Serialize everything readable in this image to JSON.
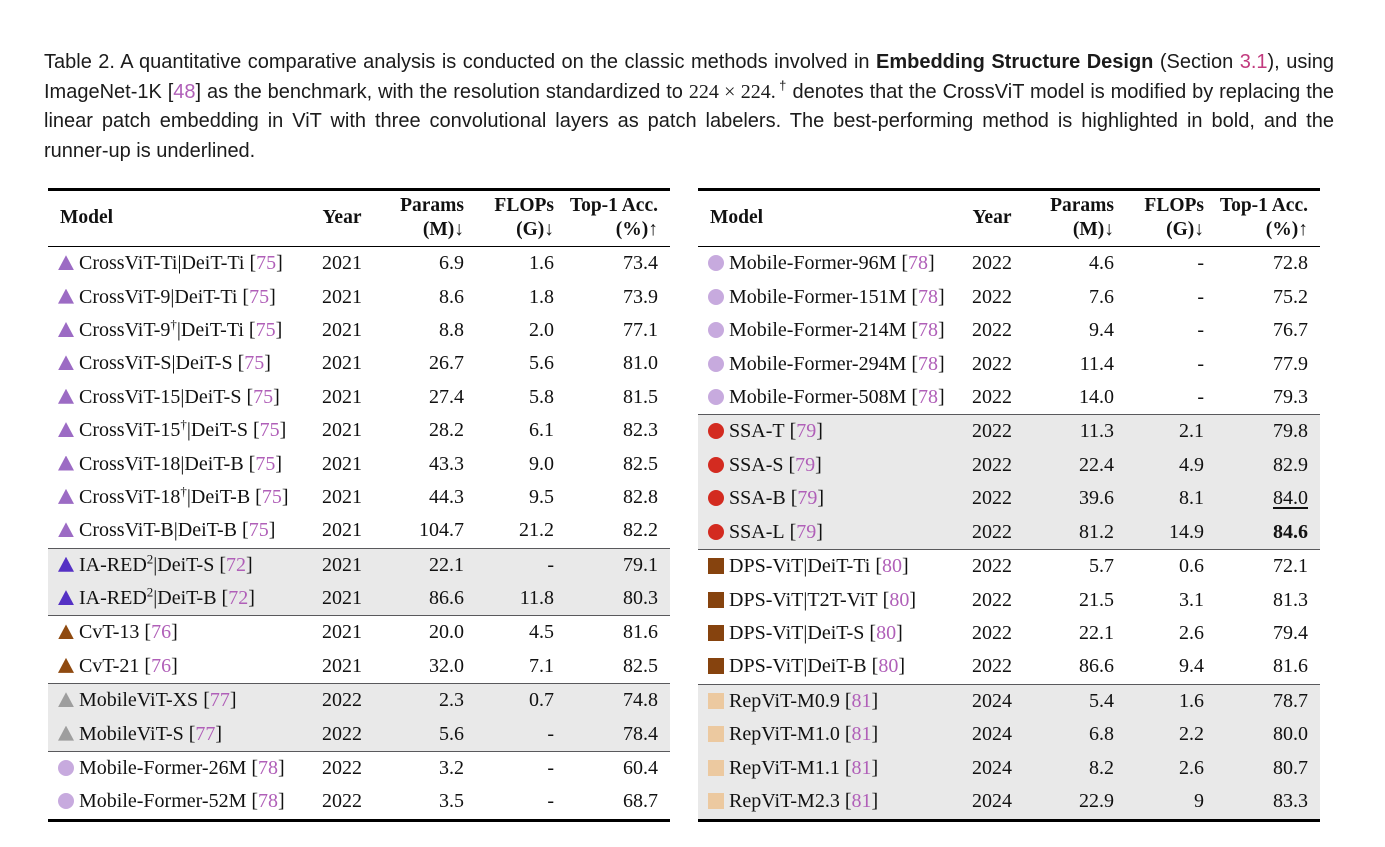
{
  "caption": {
    "t1": "Table 2.  A quantitative comparative analysis is conducted on the classic methods involved in ",
    "b": "Embedding Structure Design",
    "t2": " (Section ",
    "sec": "3.1",
    "t3": "), using ImageNet-1K [",
    "cite": "48",
    "t4": "] as the benchmark, with the resolution standardized to ",
    "math": "224 × 224.",
    "sup": "†",
    "t5": " denotes that the CrossViT model is modified by replacing the linear patch embedding in ViT with three convolutional layers as patch labelers. The best-performing method is highlighted in bold, and the runner-up is underlined."
  },
  "strings": {
    "ref_open": "[",
    "ref_close": "]"
  },
  "table_header": {
    "model": "Model",
    "year": "Year",
    "params_line1": "Params",
    "params_line2": "(M)↓",
    "flops_line1": "FLOPs",
    "flops_line2": "(G)↓",
    "acc_line1": "Top-1 Acc.",
    "acc_line2": "(%)↑"
  },
  "marker_colors": {
    "crossvit_purple": "#9c6bc4",
    "iared_indigo": "#5531c4",
    "cvt_brown": "#8f4a10",
    "mobilevit_gray": "#9e9e9e",
    "mobileformer_lilac": "#c7aade",
    "ssa_red": "#d32b20",
    "dps_brown": "#86430e",
    "repvit_tan": "#ecc9a0"
  },
  "style_colors": {
    "shaded_row": "#e9e9e9",
    "citation_link": "#b05fb8",
    "section_link": "#c23a7e"
  },
  "left_table": {
    "rows": [
      {
        "marker_shape": "triangle",
        "marker_color": "#9c6bc4",
        "name_pre": "CrossViT-Ti|DeiT-Ti",
        "name_sup": "",
        "name_post": "",
        "ref": "75",
        "year": "2021",
        "params": "6.9",
        "flops": "1.6",
        "acc": "73.4",
        "shaded": false,
        "group_start": false,
        "acc_style": "normal"
      },
      {
        "marker_shape": "triangle",
        "marker_color": "#9c6bc4",
        "name_pre": "CrossViT-9|DeiT-Ti",
        "name_sup": "",
        "name_post": "",
        "ref": "75",
        "year": "2021",
        "params": "8.6",
        "flops": "1.8",
        "acc": "73.9",
        "shaded": false,
        "group_start": false,
        "acc_style": "normal"
      },
      {
        "marker_shape": "triangle",
        "marker_color": "#9c6bc4",
        "name_pre": "CrossViT-9",
        "name_sup": "†",
        "name_post": "|DeiT-Ti",
        "ref": "75",
        "year": "2021",
        "params": "8.8",
        "flops": "2.0",
        "acc": "77.1",
        "shaded": false,
        "group_start": false,
        "acc_style": "normal"
      },
      {
        "marker_shape": "triangle",
        "marker_color": "#9c6bc4",
        "name_pre": "CrossViT-S|DeiT-S",
        "name_sup": "",
        "name_post": "",
        "ref": "75",
        "year": "2021",
        "params": "26.7",
        "flops": "5.6",
        "acc": "81.0",
        "shaded": false,
        "group_start": false,
        "acc_style": "normal"
      },
      {
        "marker_shape": "triangle",
        "marker_color": "#9c6bc4",
        "name_pre": "CrossViT-15|DeiT-S",
        "name_sup": "",
        "name_post": "",
        "ref": "75",
        "year": "2021",
        "params": "27.4",
        "flops": "5.8",
        "acc": "81.5",
        "shaded": false,
        "group_start": false,
        "acc_style": "normal"
      },
      {
        "marker_shape": "triangle",
        "marker_color": "#9c6bc4",
        "name_pre": "CrossViT-15",
        "name_sup": "†",
        "name_post": "|DeiT-S",
        "ref": "75",
        "year": "2021",
        "params": "28.2",
        "flops": "6.1",
        "acc": "82.3",
        "shaded": false,
        "group_start": false,
        "acc_style": "normal"
      },
      {
        "marker_shape": "triangle",
        "marker_color": "#9c6bc4",
        "name_pre": "CrossViT-18|DeiT-B",
        "name_sup": "",
        "name_post": "",
        "ref": "75",
        "year": "2021",
        "params": "43.3",
        "flops": "9.0",
        "acc": "82.5",
        "shaded": false,
        "group_start": false,
        "acc_style": "normal"
      },
      {
        "marker_shape": "triangle",
        "marker_color": "#9c6bc4",
        "name_pre": "CrossViT-18",
        "name_sup": "†",
        "name_post": "|DeiT-B",
        "ref": "75",
        "year": "2021",
        "params": "44.3",
        "flops": "9.5",
        "acc": "82.8",
        "shaded": false,
        "group_start": false,
        "acc_style": "normal"
      },
      {
        "marker_shape": "triangle",
        "marker_color": "#9c6bc4",
        "name_pre": "CrossViT-B|DeiT-B",
        "name_sup": "",
        "name_post": "",
        "ref": "75",
        "year": "2021",
        "params": "104.7",
        "flops": "21.2",
        "acc": "82.2",
        "shaded": false,
        "group_start": false,
        "acc_style": "normal"
      },
      {
        "marker_shape": "triangle",
        "marker_color": "#5531c4",
        "name_pre": "IA-RED",
        "name_sup": "2",
        "name_post": "|DeiT-S",
        "ref": "72",
        "year": "2021",
        "params": "22.1",
        "flops": "-",
        "acc": "79.1",
        "shaded": true,
        "group_start": true,
        "acc_style": "normal"
      },
      {
        "marker_shape": "triangle",
        "marker_color": "#5531c4",
        "name_pre": "IA-RED",
        "name_sup": "2",
        "name_post": "|DeiT-B",
        "ref": "72",
        "year": "2021",
        "params": "86.6",
        "flops": "11.8",
        "acc": "80.3",
        "shaded": true,
        "group_start": false,
        "acc_style": "normal"
      },
      {
        "marker_shape": "triangle",
        "marker_color": "#8f4a10",
        "name_pre": "CvT-13",
        "name_sup": "",
        "name_post": "",
        "ref": "76",
        "year": "2021",
        "params": "20.0",
        "flops": "4.5",
        "acc": "81.6",
        "shaded": false,
        "group_start": true,
        "acc_style": "normal"
      },
      {
        "marker_shape": "triangle",
        "marker_color": "#8f4a10",
        "name_pre": "CvT-21",
        "name_sup": "",
        "name_post": "",
        "ref": "76",
        "year": "2021",
        "params": "32.0",
        "flops": "7.1",
        "acc": "82.5",
        "shaded": false,
        "group_start": false,
        "acc_style": "normal"
      },
      {
        "marker_shape": "triangle",
        "marker_color": "#9e9e9e",
        "name_pre": "MobileViT-XS",
        "name_sup": "",
        "name_post": "",
        "ref": "77",
        "year": "2022",
        "params": "2.3",
        "flops": "0.7",
        "acc": "74.8",
        "shaded": true,
        "group_start": true,
        "acc_style": "normal"
      },
      {
        "marker_shape": "triangle",
        "marker_color": "#9e9e9e",
        "name_pre": "MobileViT-S",
        "name_sup": "",
        "name_post": "",
        "ref": "77",
        "year": "2022",
        "params": "5.6",
        "flops": "-",
        "acc": "78.4",
        "shaded": true,
        "group_start": false,
        "acc_style": "normal"
      },
      {
        "marker_shape": "circle",
        "marker_color": "#c7aade",
        "name_pre": "Mobile-Former-26M",
        "name_sup": "",
        "name_post": "",
        "ref": "78",
        "year": "2022",
        "params": "3.2",
        "flops": "-",
        "acc": "60.4",
        "shaded": false,
        "group_start": true,
        "acc_style": "normal"
      },
      {
        "marker_shape": "circle",
        "marker_color": "#c7aade",
        "name_pre": "Mobile-Former-52M",
        "name_sup": "",
        "name_post": "",
        "ref": "78",
        "year": "2022",
        "params": "3.5",
        "flops": "-",
        "acc": "68.7",
        "shaded": false,
        "group_start": false,
        "acc_style": "normal"
      }
    ]
  },
  "right_table": {
    "rows": [
      {
        "marker_shape": "circle",
        "marker_color": "#c7aade",
        "name_pre": "Mobile-Former-96M",
        "name_sup": "",
        "name_post": "",
        "ref": "78",
        "year": "2022",
        "params": "4.6",
        "flops": "-",
        "acc": "72.8",
        "shaded": false,
        "group_start": false,
        "acc_style": "normal"
      },
      {
        "marker_shape": "circle",
        "marker_color": "#c7aade",
        "name_pre": "Mobile-Former-151M",
        "name_sup": "",
        "name_post": "",
        "ref": "78",
        "year": "2022",
        "params": "7.6",
        "flops": "-",
        "acc": "75.2",
        "shaded": false,
        "group_start": false,
        "acc_style": "normal"
      },
      {
        "marker_shape": "circle",
        "marker_color": "#c7aade",
        "name_pre": "Mobile-Former-214M",
        "name_sup": "",
        "name_post": "",
        "ref": "78",
        "year": "2022",
        "params": "9.4",
        "flops": "-",
        "acc": "76.7",
        "shaded": false,
        "group_start": false,
        "acc_style": "normal"
      },
      {
        "marker_shape": "circle",
        "marker_color": "#c7aade",
        "name_pre": "Mobile-Former-294M",
        "name_sup": "",
        "name_post": "",
        "ref": "78",
        "year": "2022",
        "params": "11.4",
        "flops": "-",
        "acc": "77.9",
        "shaded": false,
        "group_start": false,
        "acc_style": "normal"
      },
      {
        "marker_shape": "circle",
        "marker_color": "#c7aade",
        "name_pre": "Mobile-Former-508M",
        "name_sup": "",
        "name_post": "",
        "ref": "78",
        "year": "2022",
        "params": "14.0",
        "flops": "-",
        "acc": "79.3",
        "shaded": false,
        "group_start": false,
        "acc_style": "normal"
      },
      {
        "marker_shape": "circle",
        "marker_color": "#d32b20",
        "name_pre": "SSA-T",
        "name_sup": "",
        "name_post": "",
        "ref": "79",
        "year": "2022",
        "params": "11.3",
        "flops": "2.1",
        "acc": "79.8",
        "shaded": true,
        "group_start": true,
        "acc_style": "normal"
      },
      {
        "marker_shape": "circle",
        "marker_color": "#d32b20",
        "name_pre": "SSA-S",
        "name_sup": "",
        "name_post": "",
        "ref": "79",
        "year": "2022",
        "params": "22.4",
        "flops": "4.9",
        "acc": "82.9",
        "shaded": true,
        "group_start": false,
        "acc_style": "normal"
      },
      {
        "marker_shape": "circle",
        "marker_color": "#d32b20",
        "name_pre": "SSA-B",
        "name_sup": "",
        "name_post": "",
        "ref": "79",
        "year": "2022",
        "params": "39.6",
        "flops": "8.1",
        "acc": "84.0",
        "shaded": true,
        "group_start": false,
        "acc_style": "underline"
      },
      {
        "marker_shape": "circle",
        "marker_color": "#d32b20",
        "name_pre": "SSA-L",
        "name_sup": "",
        "name_post": "",
        "ref": "79",
        "year": "2022",
        "params": "81.2",
        "flops": "14.9",
        "acc": "84.6",
        "shaded": true,
        "group_start": false,
        "acc_style": "bold"
      },
      {
        "marker_shape": "square",
        "marker_color": "#86430e",
        "name_pre": "DPS-ViT|DeiT-Ti",
        "name_sup": "",
        "name_post": "",
        "ref": "80",
        "year": "2022",
        "params": "5.7",
        "flops": "0.6",
        "acc": "72.1",
        "shaded": false,
        "group_start": true,
        "acc_style": "normal"
      },
      {
        "marker_shape": "square",
        "marker_color": "#86430e",
        "name_pre": "DPS-ViT|T2T-ViT",
        "name_sup": "",
        "name_post": "",
        "ref": "80",
        "year": "2022",
        "params": "21.5",
        "flops": "3.1",
        "acc": "81.3",
        "shaded": false,
        "group_start": false,
        "acc_style": "normal"
      },
      {
        "marker_shape": "square",
        "marker_color": "#86430e",
        "name_pre": "DPS-ViT|DeiT-S",
        "name_sup": "",
        "name_post": "",
        "ref": "80",
        "year": "2022",
        "params": "22.1",
        "flops": "2.6",
        "acc": "79.4",
        "shaded": false,
        "group_start": false,
        "acc_style": "normal"
      },
      {
        "marker_shape": "square",
        "marker_color": "#86430e",
        "name_pre": "DPS-ViT|DeiT-B",
        "name_sup": "",
        "name_post": "",
        "ref": "80",
        "year": "2022",
        "params": "86.6",
        "flops": "9.4",
        "acc": "81.6",
        "shaded": false,
        "group_start": false,
        "acc_style": "normal"
      },
      {
        "marker_shape": "square",
        "marker_color": "#ecc9a0",
        "name_pre": "RepViT-M0.9",
        "name_sup": "",
        "name_post": "",
        "ref": "81",
        "year": "2024",
        "params": "5.4",
        "flops": "1.6",
        "acc": "78.7",
        "shaded": true,
        "group_start": true,
        "acc_style": "normal"
      },
      {
        "marker_shape": "square",
        "marker_color": "#ecc9a0",
        "name_pre": "RepViT-M1.0",
        "name_sup": "",
        "name_post": "",
        "ref": "81",
        "year": "2024",
        "params": "6.8",
        "flops": "2.2",
        "acc": "80.0",
        "shaded": true,
        "group_start": false,
        "acc_style": "normal"
      },
      {
        "marker_shape": "square",
        "marker_color": "#ecc9a0",
        "name_pre": "RepViT-M1.1",
        "name_sup": "",
        "name_post": "",
        "ref": "81",
        "year": "2024",
        "params": "8.2",
        "flops": "2.6",
        "acc": "80.7",
        "shaded": true,
        "group_start": false,
        "acc_style": "normal"
      },
      {
        "marker_shape": "square",
        "marker_color": "#ecc9a0",
        "name_pre": "RepViT-M2.3",
        "name_sup": "",
        "name_post": "",
        "ref": "81",
        "year": "2024",
        "params": "22.9",
        "flops": "9",
        "acc": "83.3",
        "shaded": true,
        "group_start": false,
        "acc_style": "normal"
      }
    ]
  }
}
